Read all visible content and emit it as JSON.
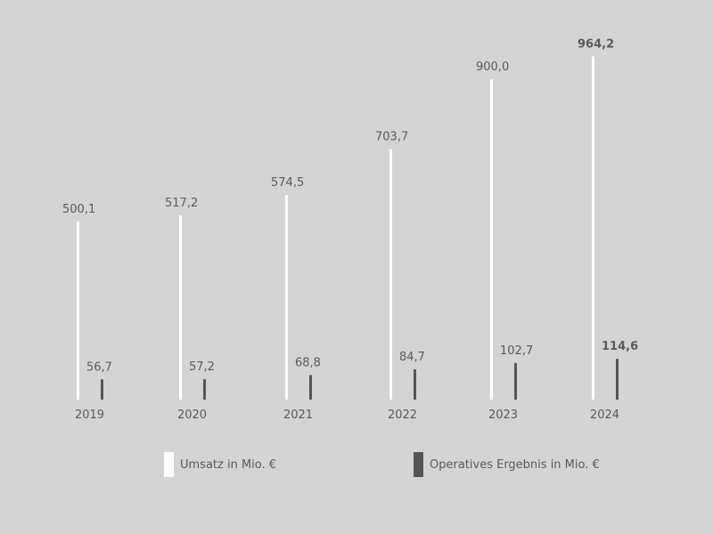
{
  "chart_data": {
    "type": "bar",
    "title": "",
    "xlabel": "",
    "ylabel": "",
    "categories": [
      "2019",
      "2020",
      "2021",
      "2022",
      "2023",
      "2024"
    ],
    "ylim": [
      0,
      1000
    ],
    "grid": false,
    "legend_position": "bottom",
    "series": [
      {
        "name": "Umsatz in Mio. €",
        "color": "#ffffff",
        "values": [
          500.1,
          517.2,
          574.5,
          703.7,
          900.0,
          964.2
        ],
        "labels": [
          "500,1",
          "517,2",
          "574,5",
          "703,7",
          "900,0",
          "964,2"
        ]
      },
      {
        "name": "Operatives Ergebnis in Mio. €",
        "color": "#555555",
        "values": [
          56.7,
          57.2,
          68.8,
          84.7,
          102.7,
          114.6
        ],
        "labels": [
          "56,7",
          "57,2",
          "68,8",
          "84,7",
          "102,7",
          "114,6"
        ]
      }
    ],
    "highlight_category": "2024"
  }
}
